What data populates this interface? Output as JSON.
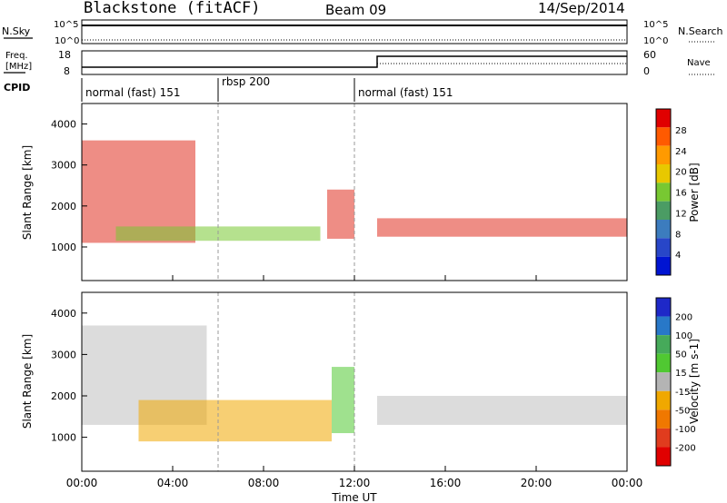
{
  "header": {
    "station": "Blackstone (fitACF)",
    "beam": "Beam 09",
    "date": "14/Sep/2014"
  },
  "status_panel": {
    "nsky_label": "N.Sky",
    "nsearch_label": "N.Search",
    "noise_ticks": [
      "10^5",
      "10^0"
    ],
    "freq_label": "Freq.",
    "freq_unit": "[MHz]",
    "freq_ticks": [
      "18",
      "8"
    ],
    "nave_label": "Nave",
    "nave_ticks": [
      "60",
      "0"
    ],
    "cpid_label": "CPID",
    "cpid_segments": [
      {
        "label": "normal (fast) 151",
        "start_hour": 0,
        "end_hour": 6
      },
      {
        "label": "rbsp 200",
        "start_hour": 6,
        "end_hour": 12
      },
      {
        "label": "normal (fast) 151",
        "start_hour": 12,
        "end_hour": 24
      }
    ]
  },
  "chart_data": [
    {
      "type": "heatmap",
      "quantity": "Power",
      "xlabel": "Time UT",
      "ylabel": "Slant Range [km]",
      "xlim": [
        0,
        24
      ],
      "ylim": [
        180,
        4500
      ],
      "x_ticks": [
        "00:00",
        "04:00",
        "08:00",
        "12:00",
        "16:00",
        "20:00",
        "00:00"
      ],
      "y_ticks": [
        1000,
        2000,
        3000,
        4000
      ],
      "colorbar": {
        "label": "Power [dB]",
        "ticks": [
          "28",
          "24",
          "20",
          "16",
          "12",
          "8",
          "4"
        ],
        "colors": [
          "#e00000",
          "#ff5a00",
          "#ff9a00",
          "#e8c800",
          "#78c832",
          "#4b9c64",
          "#3c7cbe",
          "#2846c8",
          "#0014d2"
        ]
      },
      "bands": [
        {
          "time": [
            0.0,
            5.0
          ],
          "range": [
            1100,
            3600
          ],
          "color": "#e03020"
        },
        {
          "time": [
            1.5,
            10.5
          ],
          "range": [
            1150,
            1500
          ],
          "color": "#78c832"
        },
        {
          "time": [
            10.8,
            12.0
          ],
          "range": [
            1200,
            2400
          ],
          "color": "#e03020"
        },
        {
          "time": [
            13.0,
            24.0
          ],
          "range": [
            1250,
            1700
          ],
          "color": "#e03020"
        }
      ]
    },
    {
      "type": "heatmap",
      "quantity": "Velocity",
      "xlabel": "Time UT",
      "ylabel": "Slant Range [km]",
      "xlim": [
        0,
        24
      ],
      "ylim": [
        180,
        4500
      ],
      "x_ticks": [
        "00:00",
        "04:00",
        "08:00",
        "12:00",
        "16:00",
        "20:00",
        "00:00"
      ],
      "y_ticks": [
        1000,
        2000,
        3000,
        4000
      ],
      "colorbar": {
        "label": "Velocity [m s-1]",
        "ticks": [
          "200",
          "100",
          "50",
          "15",
          "-15",
          "-50",
          "-100",
          "-200"
        ],
        "colors": [
          "#1e28c8",
          "#2878c8",
          "#46aa5a",
          "#50c832",
          "#b4b4b4",
          "#f0a800",
          "#f07800",
          "#e03c1e",
          "#e00000"
        ]
      },
      "bands": [
        {
          "time": [
            0.0,
            5.5
          ],
          "range": [
            1300,
            3700
          ],
          "color": "#c0c0c0"
        },
        {
          "time": [
            2.5,
            11.0
          ],
          "range": [
            900,
            1900
          ],
          "color": "#f0a800"
        },
        {
          "time": [
            11.0,
            12.0
          ],
          "range": [
            1100,
            2700
          ],
          "color": "#50c832"
        },
        {
          "time": [
            13.0,
            24.0
          ],
          "range": [
            1300,
            2000
          ],
          "color": "#c0c0c0"
        }
      ]
    }
  ]
}
